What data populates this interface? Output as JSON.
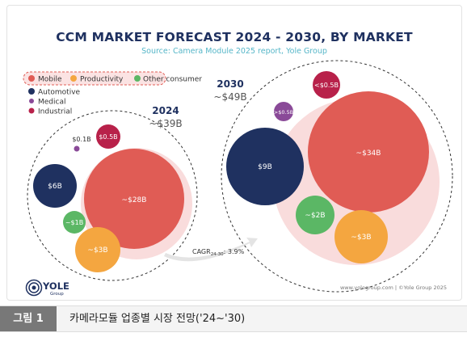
{
  "chart_data": {
    "type": "bubble",
    "title": "CCM MARKET FORECAST 2024 - 2030, BY MARKET",
    "subtitle": "Source: Camera Module 2025 report, Yole Group",
    "legend": {
      "placement": "top-left",
      "items": [
        {
          "label": "Mobile",
          "color": "#e05c55"
        },
        {
          "label": "Productivity",
          "color": "#f4a640"
        },
        {
          "label": "Other consumer",
          "color": "#5bb765"
        },
        {
          "label": "Automotive",
          "color": "#1f3160"
        },
        {
          "label": "Medical",
          "color": "#8a4a98"
        },
        {
          "label": "Industrial",
          "color": "#b8214a"
        }
      ]
    },
    "groups": [
      {
        "year": "2024",
        "total": "~$39B",
        "bubbles": [
          {
            "segment": "Mobile",
            "value": 28,
            "label": "~$28B"
          },
          {
            "segment": "Automotive",
            "value": 6,
            "label": "$6B"
          },
          {
            "segment": "Productivity",
            "value": 3,
            "label": "~$3B"
          },
          {
            "segment": "Other consumer",
            "value": 1,
            "label": "~$1B"
          },
          {
            "segment": "Industrial",
            "value": 0.5,
            "label": "$0.5B"
          },
          {
            "segment": "Medical",
            "value": 0.1,
            "label": "$0.1B"
          }
        ]
      },
      {
        "year": "2030",
        "total": "~$49B",
        "bubbles": [
          {
            "segment": "Mobile",
            "value": 34,
            "label": "~$34B"
          },
          {
            "segment": "Automotive",
            "value": 9,
            "label": "$9B"
          },
          {
            "segment": "Productivity",
            "value": 3,
            "label": "~$3B"
          },
          {
            "segment": "Other consumer",
            "value": 2,
            "label": "~$2B"
          },
          {
            "segment": "Industrial",
            "value": 0.5,
            "label": "<$0.5B"
          },
          {
            "segment": "Medical",
            "value": 0.5,
            "label": ">$0.5B"
          }
        ]
      }
    ],
    "cagr": {
      "prefix": "CAGR",
      "subscript": "24-30",
      "value": ": 3.9%"
    }
  },
  "logo": {
    "text": "YOLE",
    "sub": "Group"
  },
  "footer": "www.yolegroup.com | ©Yole Group 2025",
  "figure": {
    "label": "그림 1",
    "caption": "카메라모듈 업종별 시장 전망('24~'30)"
  },
  "colors": {
    "navy": "#1f3160",
    "red": "#e05c55",
    "orange": "#f4a640",
    "green": "#5bb765",
    "purple": "#8a4a98",
    "crimson": "#b8214a",
    "pinkFill": "#f9dcdc"
  }
}
